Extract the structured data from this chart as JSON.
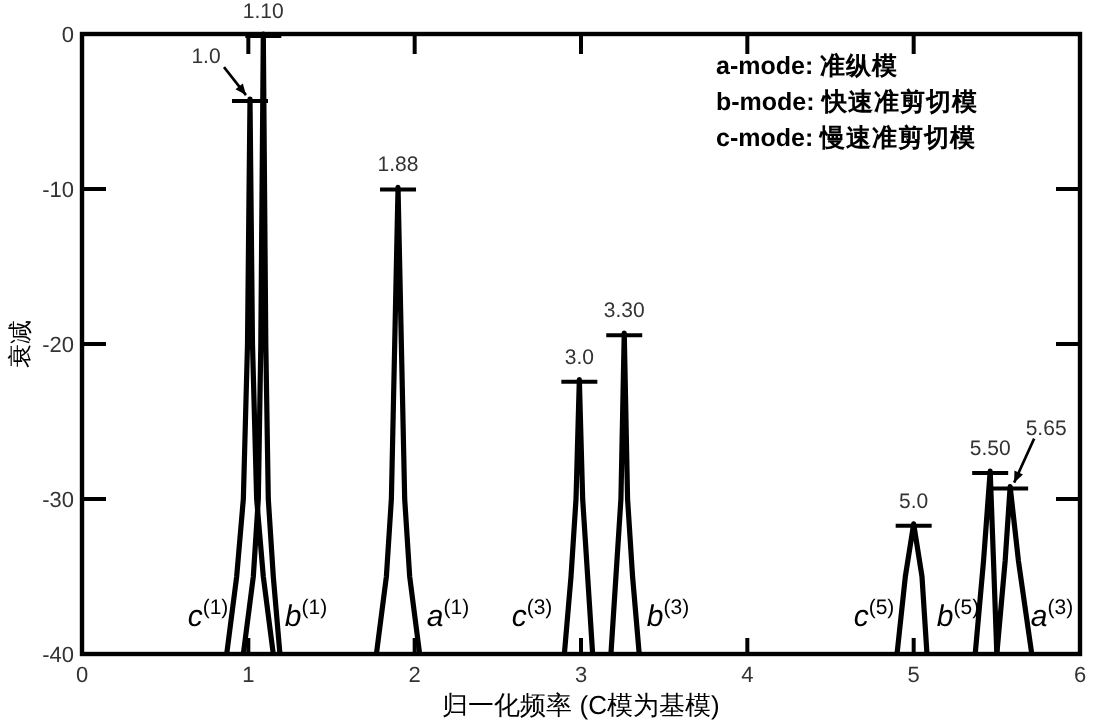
{
  "chart_data": {
    "type": "line",
    "xlabel": "归一化频率 (C模为基模)",
    "ylabel": "衰减",
    "xlim": [
      0,
      6
    ],
    "ylim": [
      -40,
      0
    ],
    "xticks": [
      0,
      1,
      2,
      3,
      4,
      5,
      6
    ],
    "yticks": [
      -40,
      -30,
      -20,
      -10,
      0
    ],
    "grid": false,
    "line_style": "solid",
    "series": [
      {
        "color": "#000000",
        "x": [
          0.87,
          0.93,
          0.97,
          0.995,
          1.01,
          1.025,
          1.05,
          1.09,
          1.15
        ],
        "values": [
          -40,
          -35,
          -30,
          -20,
          -4.2,
          -20,
          -30,
          -35,
          -40
        ]
      },
      {
        "color": "#000000",
        "x": [
          0.97,
          1.03,
          1.06,
          1.075,
          1.09,
          1.105,
          1.12,
          1.15,
          1.19
        ],
        "values": [
          -40,
          -35,
          -30,
          -20,
          0,
          -20,
          -30,
          -35,
          -40
        ]
      },
      {
        "color": "#000000",
        "x": [
          1.77,
          1.83,
          1.86,
          1.88,
          1.9,
          1.92,
          1.94,
          1.97,
          2.03
        ],
        "values": [
          -40,
          -35,
          -30,
          -20,
          -9.9,
          -20,
          -30,
          -35,
          -40
        ]
      },
      {
        "color": "#000000",
        "x": [
          2.9,
          2.94,
          2.97,
          2.99,
          3.01,
          3.04,
          3.07
        ],
        "values": [
          -40,
          -35,
          -30,
          -22.3,
          -30,
          -35,
          -40
        ]
      },
      {
        "color": "#000000",
        "x": [
          3.18,
          3.21,
          3.24,
          3.26,
          3.28,
          3.31,
          3.35
        ],
        "values": [
          -40,
          -35,
          -30,
          -19.3,
          -30,
          -35,
          -40
        ]
      },
      {
        "color": "#000000",
        "x": [
          4.9,
          4.95,
          5.0,
          5.05,
          5.08
        ],
        "values": [
          -40,
          -35,
          -31.6,
          -35,
          -40
        ]
      },
      {
        "color": "#000000",
        "x": [
          5.37,
          5.42,
          5.46,
          5.48,
          5.5
        ],
        "values": [
          -40,
          -34,
          -28.2,
          -34,
          -40
        ]
      },
      {
        "color": "#000000",
        "x": [
          5.5,
          5.55,
          5.58,
          5.63,
          5.71
        ],
        "values": [
          -40,
          -34,
          -29.2,
          -34,
          -40
        ]
      }
    ],
    "annotations": [
      {
        "text": "1.0",
        "x": 1.01,
        "y": -4.2
      },
      {
        "text": "1.10",
        "x": 1.09,
        "y": 0
      },
      {
        "text": "1.88",
        "x": 1.9,
        "y": -9.9
      },
      {
        "text": "3.0",
        "x": 2.99,
        "y": -22.3
      },
      {
        "text": "3.30",
        "x": 3.26,
        "y": -19.3
      },
      {
        "text": "5.0",
        "x": 5.0,
        "y": -31.6
      },
      {
        "text": "5.50",
        "x": 5.46,
        "y": -28.2
      },
      {
        "text": "5.65",
        "x": 5.58,
        "y": -29.2
      },
      "c$^{(1)}$",
      "b$^{(1)}$",
      "a$^{(1)}$",
      "c$^{(3)}$",
      "b$^{(3)}$",
      "c$^{(5)}$",
      "b$^{(5)}$",
      "a$^{(3)}$",
      "a-mode: 准纵模",
      "b-mode: 快速准剪切模",
      "c-mode: 慢速准剪切模"
    ]
  }
}
